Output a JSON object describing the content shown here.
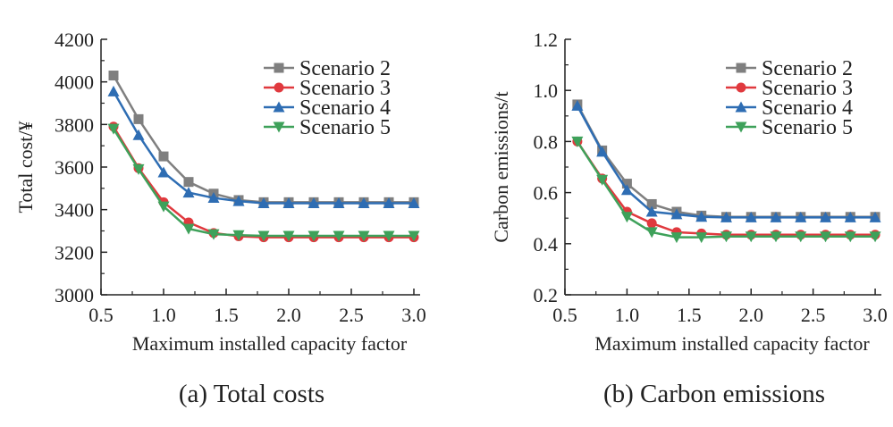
{
  "chart_data": [
    {
      "type": "line",
      "title": "",
      "xlabel": "Maximum installed capacity factor",
      "ylabel": "Total cost/¥",
      "caption": "(a) Total costs",
      "x": [
        0.6,
        0.8,
        1.0,
        1.2,
        1.4,
        1.6,
        1.8,
        2.0,
        2.2,
        2.4,
        2.6,
        2.8,
        3.0
      ],
      "xlim": [
        0.5,
        3.05
      ],
      "ylim": [
        3000,
        4200
      ],
      "xticks": [
        "0.5",
        "1.0",
        "1.5",
        "2.0",
        "2.5",
        "3.0"
      ],
      "xtick_values": [
        0.5,
        1.0,
        1.5,
        2.0,
        2.5,
        3.0
      ],
      "yticks": [
        "3000",
        "3200",
        "3400",
        "3600",
        "3800",
        "4000",
        "4200"
      ],
      "ytick_values": [
        3000,
        3200,
        3400,
        3600,
        3800,
        4000,
        4200
      ],
      "legend_position": "top-right",
      "series": [
        {
          "name": "Scenario 2",
          "color": "#7f7f7f",
          "marker": "square",
          "values": [
            4030,
            3825,
            3650,
            3530,
            3475,
            3445,
            3435,
            3435,
            3435,
            3435,
            3435,
            3435,
            3435
          ]
        },
        {
          "name": "Scenario 3",
          "color": "#e0393e",
          "marker": "circle",
          "values": [
            3790,
            3595,
            3435,
            3340,
            3290,
            3275,
            3270,
            3270,
            3270,
            3270,
            3270,
            3270,
            3270
          ]
        },
        {
          "name": "Scenario 4",
          "color": "#2e6db3",
          "marker": "triangle-up",
          "values": [
            3955,
            3750,
            3575,
            3480,
            3455,
            3440,
            3430,
            3430,
            3430,
            3430,
            3430,
            3430,
            3430
          ]
        },
        {
          "name": "Scenario 5",
          "color": "#3ea15a",
          "marker": "triangle-down",
          "values": [
            3780,
            3590,
            3415,
            3310,
            3285,
            3280,
            3277,
            3277,
            3277,
            3277,
            3277,
            3277,
            3277
          ]
        }
      ]
    },
    {
      "type": "line",
      "title": "",
      "xlabel": "Maximum installed capacity factor",
      "ylabel": "Carbon emissions/t",
      "caption": "(b) Carbon emissions",
      "x": [
        0.6,
        0.8,
        1.0,
        1.2,
        1.4,
        1.6,
        1.8,
        2.0,
        2.2,
        2.4,
        2.6,
        2.8,
        3.0
      ],
      "xlim": [
        0.5,
        3.05
      ],
      "ylim": [
        0.2,
        1.2
      ],
      "xticks": [
        "0.5",
        "1.0",
        "1.5",
        "2.0",
        "2.5",
        "3.0"
      ],
      "xtick_values": [
        0.5,
        1.0,
        1.5,
        2.0,
        2.5,
        3.0
      ],
      "yticks": [
        "0.2",
        "0.4",
        "0.6",
        "0.8",
        "1.0",
        "1.2"
      ],
      "ytick_values": [
        0.2,
        0.4,
        0.6,
        0.8,
        1.0,
        1.2
      ],
      "legend_position": "top-right",
      "series": [
        {
          "name": "Scenario 2",
          "color": "#7f7f7f",
          "marker": "square",
          "values": [
            0.945,
            0.765,
            0.635,
            0.555,
            0.525,
            0.51,
            0.505,
            0.505,
            0.505,
            0.505,
            0.505,
            0.505,
            0.505
          ]
        },
        {
          "name": "Scenario 3",
          "color": "#e0393e",
          "marker": "circle",
          "values": [
            0.8,
            0.655,
            0.525,
            0.48,
            0.445,
            0.44,
            0.435,
            0.435,
            0.435,
            0.435,
            0.435,
            0.435,
            0.435
          ]
        },
        {
          "name": "Scenario 4",
          "color": "#2e6db3",
          "marker": "triangle-up",
          "values": [
            0.94,
            0.76,
            0.61,
            0.525,
            0.515,
            0.505,
            0.503,
            0.503,
            0.503,
            0.503,
            0.503,
            0.503,
            0.503
          ]
        },
        {
          "name": "Scenario 5",
          "color": "#3ea15a",
          "marker": "triangle-down",
          "values": [
            0.8,
            0.65,
            0.505,
            0.445,
            0.425,
            0.425,
            0.428,
            0.428,
            0.428,
            0.428,
            0.428,
            0.428,
            0.428
          ]
        }
      ]
    }
  ]
}
